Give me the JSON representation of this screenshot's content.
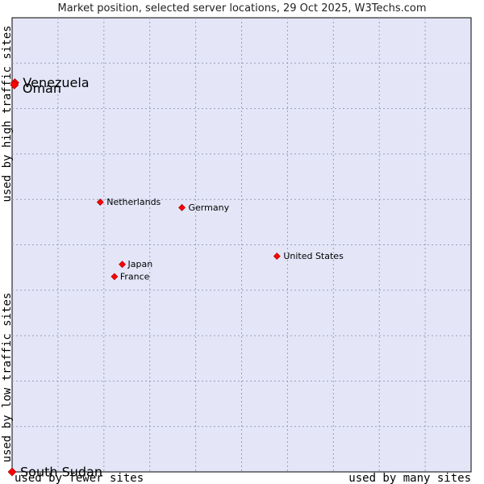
{
  "chart_data": {
    "type": "scatter",
    "title": "Market position, selected server locations, 29 Oct 2025, W3Techs.com",
    "x_axis": {
      "label_low": "used by fewer sites",
      "label_high": "used by many sites",
      "range": [
        0,
        100
      ]
    },
    "y_axis": {
      "label_low": "used by low traffic sites",
      "label_high": "used by high traffic sites",
      "range": [
        0,
        100
      ]
    },
    "grid": true,
    "background_color": "#e4e6f8",
    "marker_color": "#ff0000",
    "points": [
      {
        "name": "Venezuela",
        "x": 0.6,
        "y": 85.7,
        "label_size": "large",
        "label_offset": [
          10,
          0
        ]
      },
      {
        "name": "Oman",
        "x": 0.5,
        "y": 85.2,
        "label_size": "large",
        "label_offset": [
          10,
          4
        ]
      },
      {
        "name": "Netherlands",
        "x": 19.2,
        "y": 59.4,
        "label_size": "small",
        "label_offset": [
          8,
          0
        ]
      },
      {
        "name": "Germany",
        "x": 37.0,
        "y": 58.2,
        "label_size": "small",
        "label_offset": [
          8,
          0
        ]
      },
      {
        "name": "United States",
        "x": 57.7,
        "y": 47.5,
        "label_size": "small",
        "label_offset": [
          8,
          0
        ]
      },
      {
        "name": "Japan",
        "x": 24.0,
        "y": 45.7,
        "label_size": "small",
        "label_offset": [
          7,
          0
        ]
      },
      {
        "name": "France",
        "x": 22.3,
        "y": 43.0,
        "label_size": "small",
        "label_offset": [
          7,
          0
        ]
      },
      {
        "name": "South Sudan",
        "x": 0.0,
        "y": 0.0,
        "label_size": "large",
        "label_offset": [
          10,
          0
        ]
      }
    ]
  }
}
